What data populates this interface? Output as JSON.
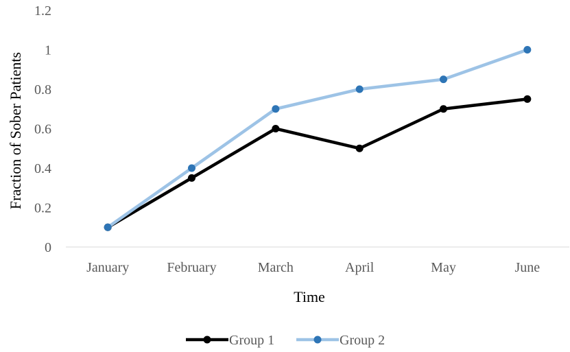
{
  "chart_data": {
    "type": "line",
    "title": "",
    "xlabel": "Time",
    "ylabel": "Fraction of Sober Patients",
    "categories": [
      "January",
      "February",
      "March",
      "April",
      "May",
      "June"
    ],
    "ylim": [
      0,
      1.2
    ],
    "y_ticks": [
      0,
      0.2,
      0.4,
      0.6,
      0.8,
      1,
      1.2
    ],
    "y_tick_labels": [
      "0",
      "0.2",
      "0.4",
      "0.6",
      "0.8",
      "1",
      "1.2"
    ],
    "grid": false,
    "legend_position": "bottom",
    "series": [
      {
        "name": "Group 1",
        "values": [
          0.1,
          0.35,
          0.6,
          0.5,
          0.7,
          0.75
        ],
        "color": "#000000"
      },
      {
        "name": "Group 2",
        "values": [
          0.1,
          0.4,
          0.7,
          0.8,
          0.85,
          1.0
        ],
        "color": "#9DC3E6",
        "marker_color": "#2E75B6"
      }
    ]
  }
}
